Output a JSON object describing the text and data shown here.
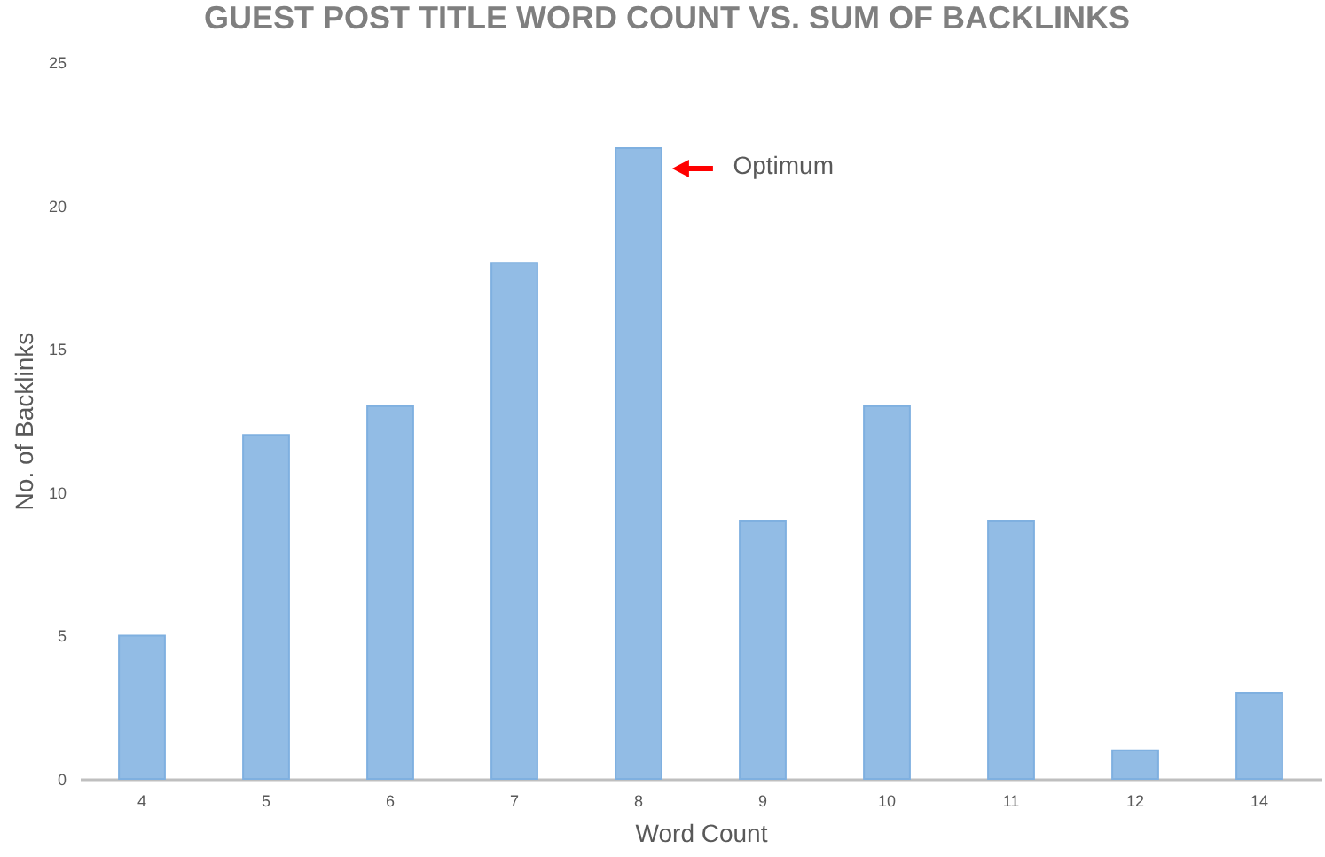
{
  "chart_data": {
    "type": "bar",
    "title": "GUEST POST TITLE WORD COUNT VS. SUM OF BACKLINKS",
    "xlabel": "Word Count",
    "ylabel": "No. of Backlinks",
    "categories": [
      "4",
      "5",
      "6",
      "7",
      "8",
      "9",
      "10",
      "11",
      "12",
      "14"
    ],
    "values": [
      5,
      12,
      13,
      18,
      22,
      9,
      13,
      9,
      1,
      3
    ],
    "color": "#7fb0e0",
    "ylim": [
      0,
      25
    ],
    "yticks": [
      0,
      5,
      10,
      15,
      20,
      25
    ],
    "annotations": [
      "Optimum"
    ]
  }
}
